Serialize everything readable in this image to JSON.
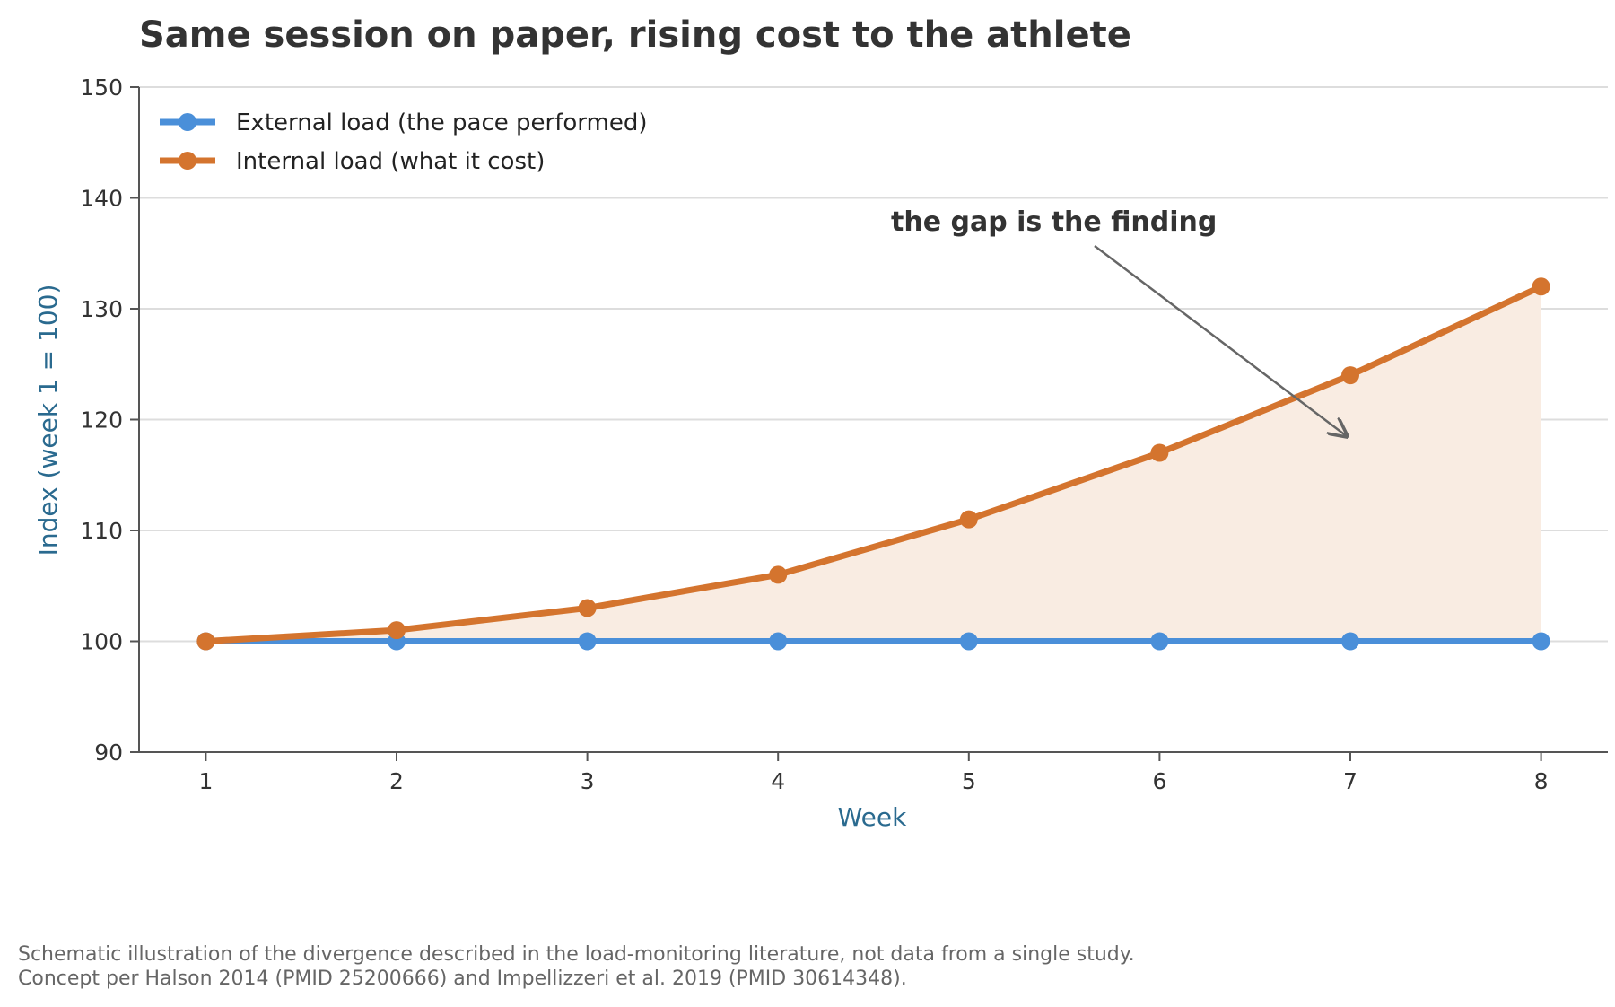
{
  "chart_data": {
    "type": "line",
    "title": "Same session on paper, rising cost to the athlete",
    "xlabel": "Week",
    "ylabel": "Index (week 1 = 100)",
    "x": [
      1,
      2,
      3,
      4,
      5,
      6,
      7,
      8
    ],
    "xlim": [
      0.65,
      8.35
    ],
    "ylim": [
      90,
      150
    ],
    "yticks": [
      90,
      100,
      110,
      120,
      130,
      140,
      150
    ],
    "grid": "horizontal",
    "legend_position": "top-left",
    "series": [
      {
        "name": "External load (the pace performed)",
        "color": "#4a8fd9",
        "values": [
          100,
          100,
          100,
          100,
          100,
          100,
          100,
          100
        ]
      },
      {
        "name": "Internal load (what it cost)",
        "color": "#d4742e",
        "values": [
          100,
          101,
          103,
          106,
          111,
          117,
          124,
          132
        ]
      }
    ],
    "shaded_gap": {
      "between": [
        "External load (the pace performed)",
        "Internal load (what it cost)"
      ],
      "color": "#f9ece2"
    },
    "annotation": {
      "text": "the gap is the finding",
      "points_to": {
        "x": 7,
        "y": 118.5
      }
    }
  },
  "footnote": {
    "line1": "Schematic illustration of the divergence described in the load-monitoring literature, not data from a single study.",
    "line2": "Concept per Halson 2014 (PMID 25200666) and Impellizzeri et al. 2019 (PMID 30614348)."
  }
}
